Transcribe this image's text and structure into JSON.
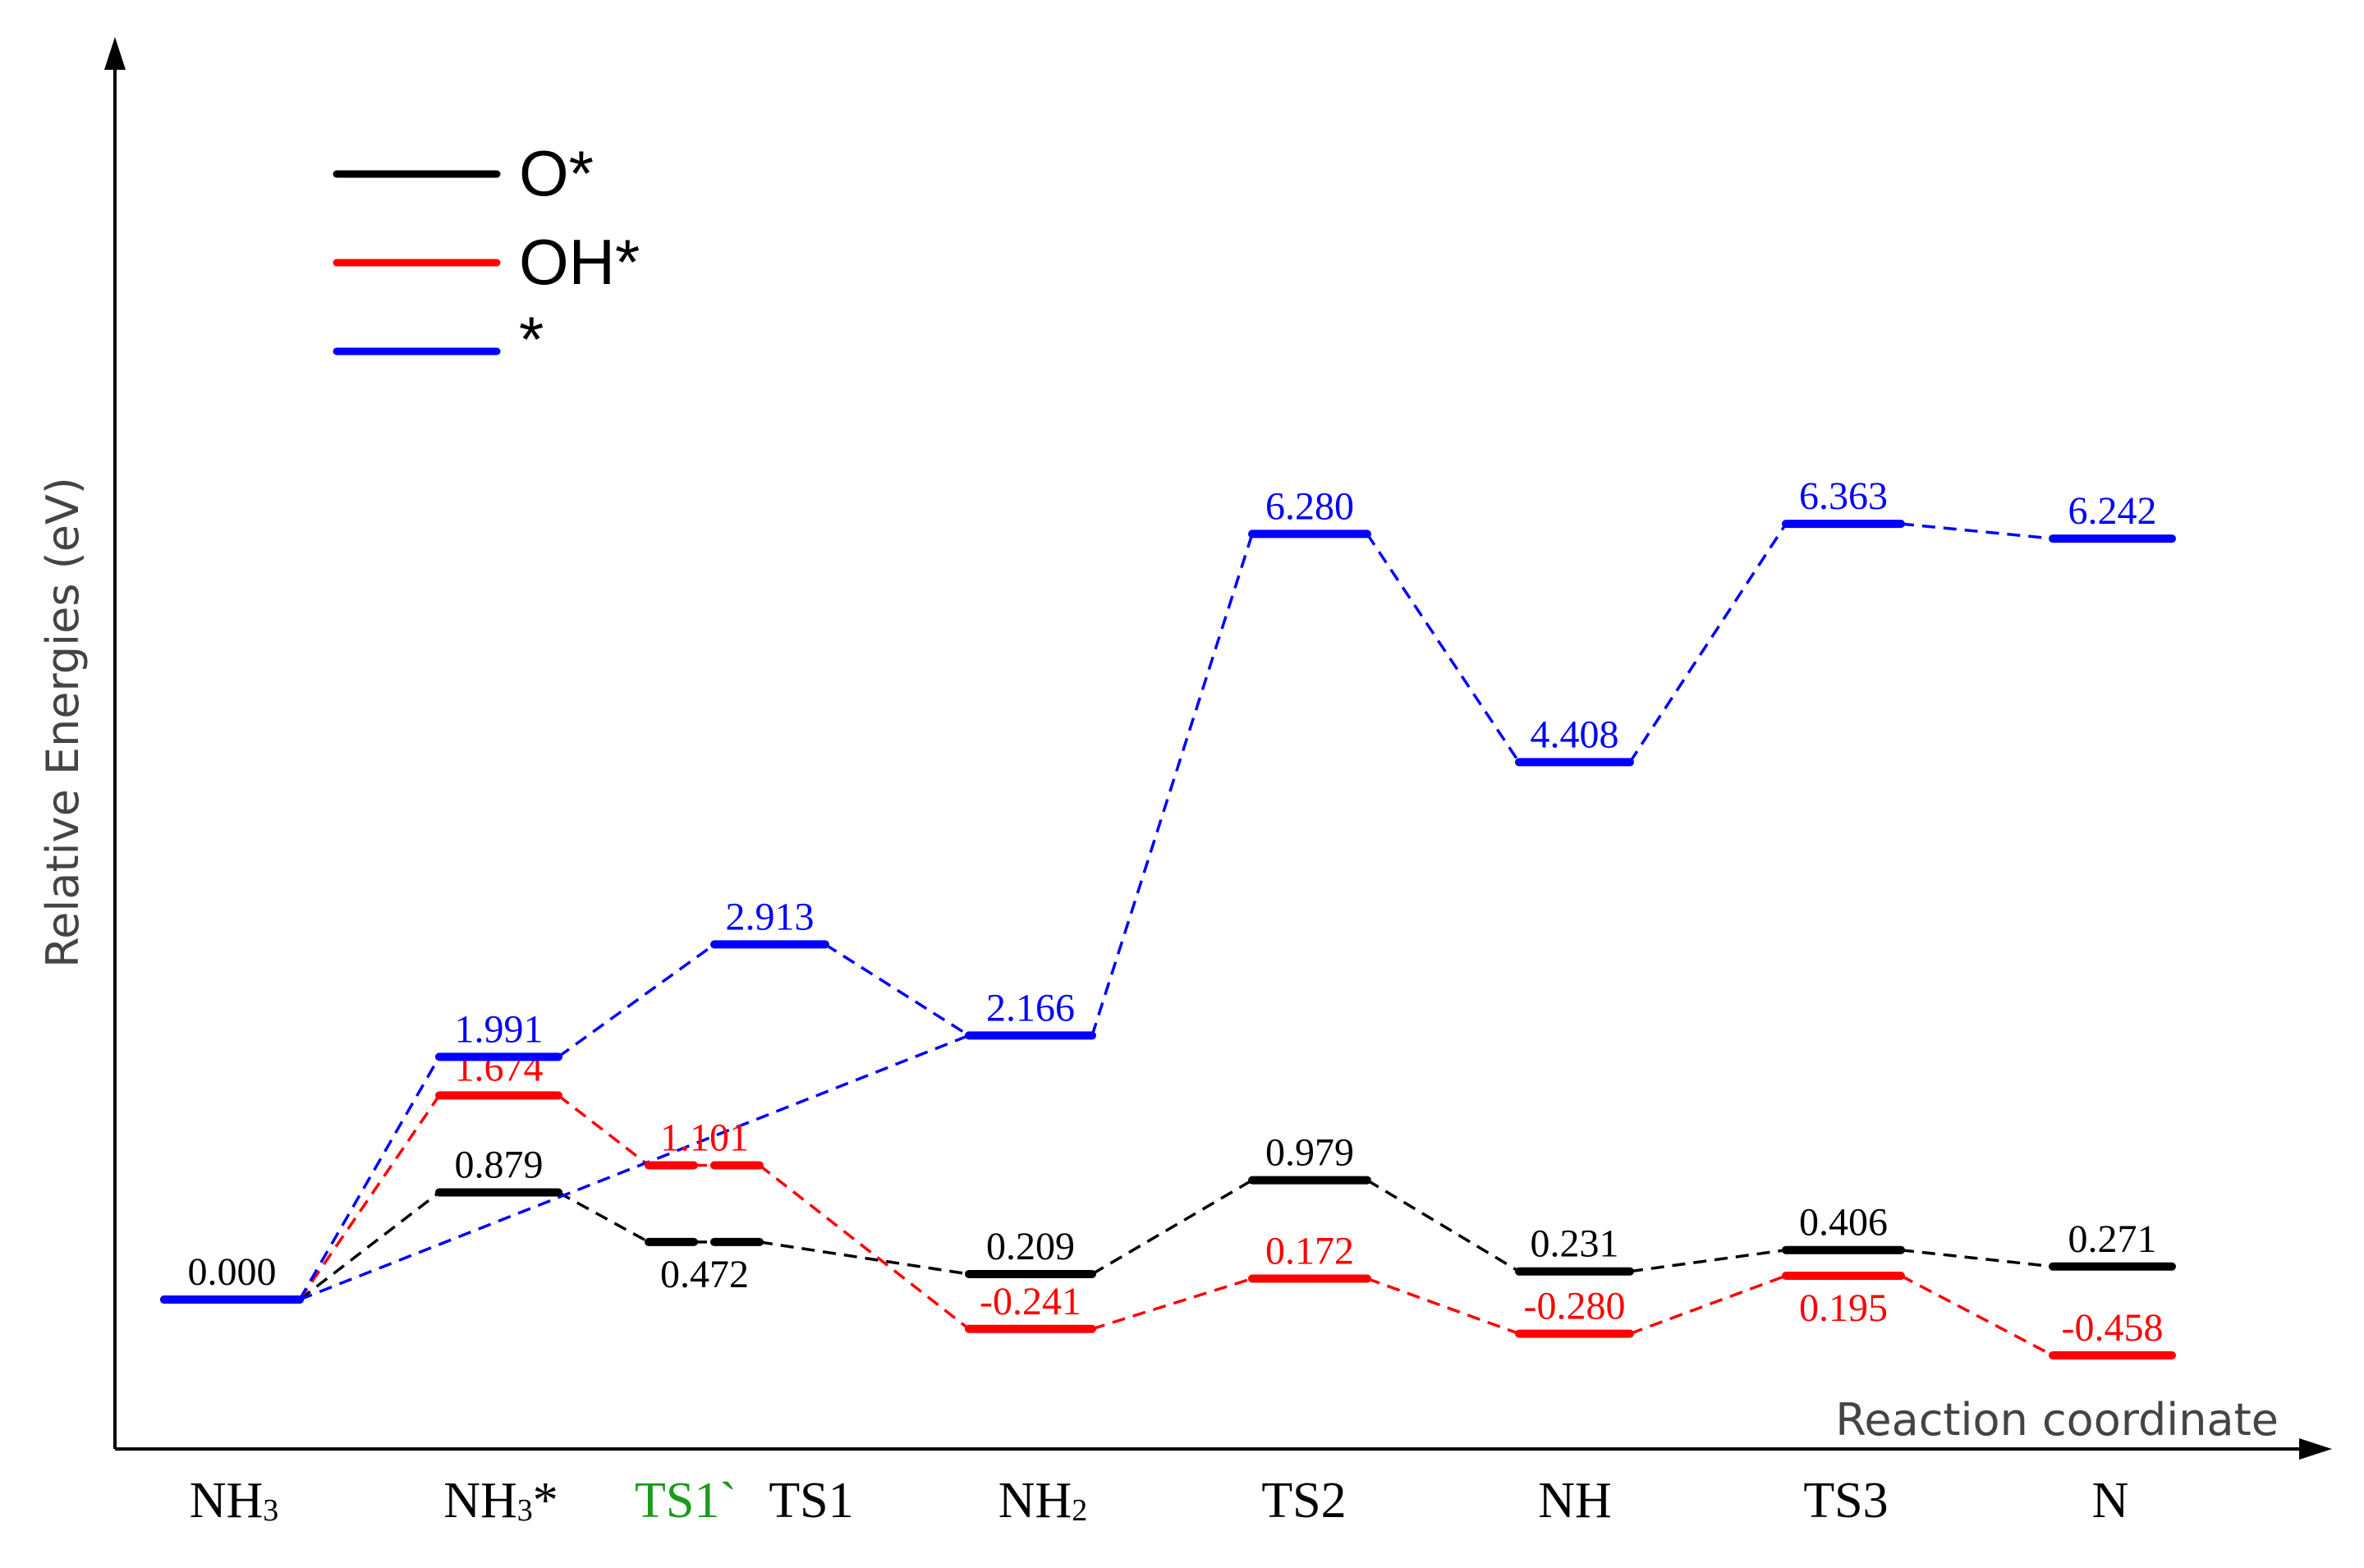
{
  "chart_data": {
    "type": "line",
    "title": "",
    "ylabel": "Relative Energies (eV)",
    "xlabel": "Reaction coordinate",
    "ylim": [
      -0.9,
      7.9
    ],
    "categories": [
      {
        "label": "NH",
        "sub": "3",
        "suffix": "",
        "color": "#000000"
      },
      {
        "label": "NH",
        "sub": "3",
        "suffix": "*",
        "color": "#000000"
      },
      {
        "label": "TS1`",
        "sub": "",
        "suffix": "",
        "color": "#1a9a1a"
      },
      {
        "label": "TS1",
        "sub": "",
        "suffix": "",
        "color": "#000000"
      },
      {
        "label": "NH",
        "sub": "2",
        "suffix": "",
        "color": "#000000"
      },
      {
        "label": "TS2",
        "sub": "",
        "suffix": "",
        "color": "#000000"
      },
      {
        "label": "NH",
        "sub": "",
        "suffix": "",
        "color": "#000000"
      },
      {
        "label": "TS3",
        "sub": "",
        "suffix": "",
        "color": "#000000"
      },
      {
        "label": "N",
        "sub": "",
        "suffix": "",
        "color": "#000000"
      }
    ],
    "legend": [
      {
        "name": "O*",
        "color": "#000000"
      },
      {
        "name": "OH*",
        "color": "#ff0000"
      },
      {
        "name": "*",
        "color": "#0000ff"
      }
    ],
    "series": [
      {
        "name": "O*",
        "color": "#000000",
        "levels": [
          {
            "stage": "NH3",
            "value": 0.0,
            "label": "0.000"
          },
          {
            "stage": "NH3*",
            "value": 0.879,
            "label": "0.879"
          },
          {
            "stage": "TS1`",
            "value": 0.472,
            "label": ""
          },
          {
            "stage": "TS1",
            "value": 0.472,
            "label": "0.472"
          },
          {
            "stage": "NH2",
            "value": 0.209,
            "label": "0.209"
          },
          {
            "stage": "TS2",
            "value": 0.979,
            "label": "0.979"
          },
          {
            "stage": "NH",
            "value": 0.231,
            "label": "0.231"
          },
          {
            "stage": "TS3",
            "value": 0.406,
            "label": "0.406"
          },
          {
            "stage": "N",
            "value": 0.271,
            "label": "0.271"
          }
        ]
      },
      {
        "name": "OH*",
        "color": "#ff0000",
        "levels": [
          {
            "stage": "NH3",
            "value": 0.0,
            "label": ""
          },
          {
            "stage": "NH3*",
            "value": 1.674,
            "label": "1.674"
          },
          {
            "stage": "TS1`",
            "value": 1.101,
            "label": ""
          },
          {
            "stage": "TS1",
            "value": 1.101,
            "label": "1.101"
          },
          {
            "stage": "NH2",
            "value": -0.241,
            "label": "-0.241"
          },
          {
            "stage": "TS2",
            "value": 0.172,
            "label": "0.172"
          },
          {
            "stage": "NH",
            "value": -0.28,
            "label": "-0.280"
          },
          {
            "stage": "TS3",
            "value": 0.195,
            "label": "0.195"
          },
          {
            "stage": "N",
            "value": -0.458,
            "label": "-0.458"
          }
        ]
      },
      {
        "name": "*",
        "color": "#0000ff",
        "levels": [
          {
            "stage": "NH3",
            "value": 0.0,
            "label": ""
          },
          {
            "stage": "NH3*",
            "value": 1.991,
            "label": "1.991"
          },
          {
            "stage": "TS1",
            "value": 2.913,
            "label": "2.913"
          },
          {
            "stage": "NH2",
            "value": 2.166,
            "label": "2.166"
          },
          {
            "stage": "TS2",
            "value": 6.28,
            "label": "6.280"
          },
          {
            "stage": "NH",
            "value": 4.408,
            "label": "4.408"
          },
          {
            "stage": "TS3",
            "value": 6.363,
            "label": "6.363"
          },
          {
            "stage": "N",
            "value": 6.242,
            "label": "6.242"
          }
        ]
      }
    ]
  }
}
